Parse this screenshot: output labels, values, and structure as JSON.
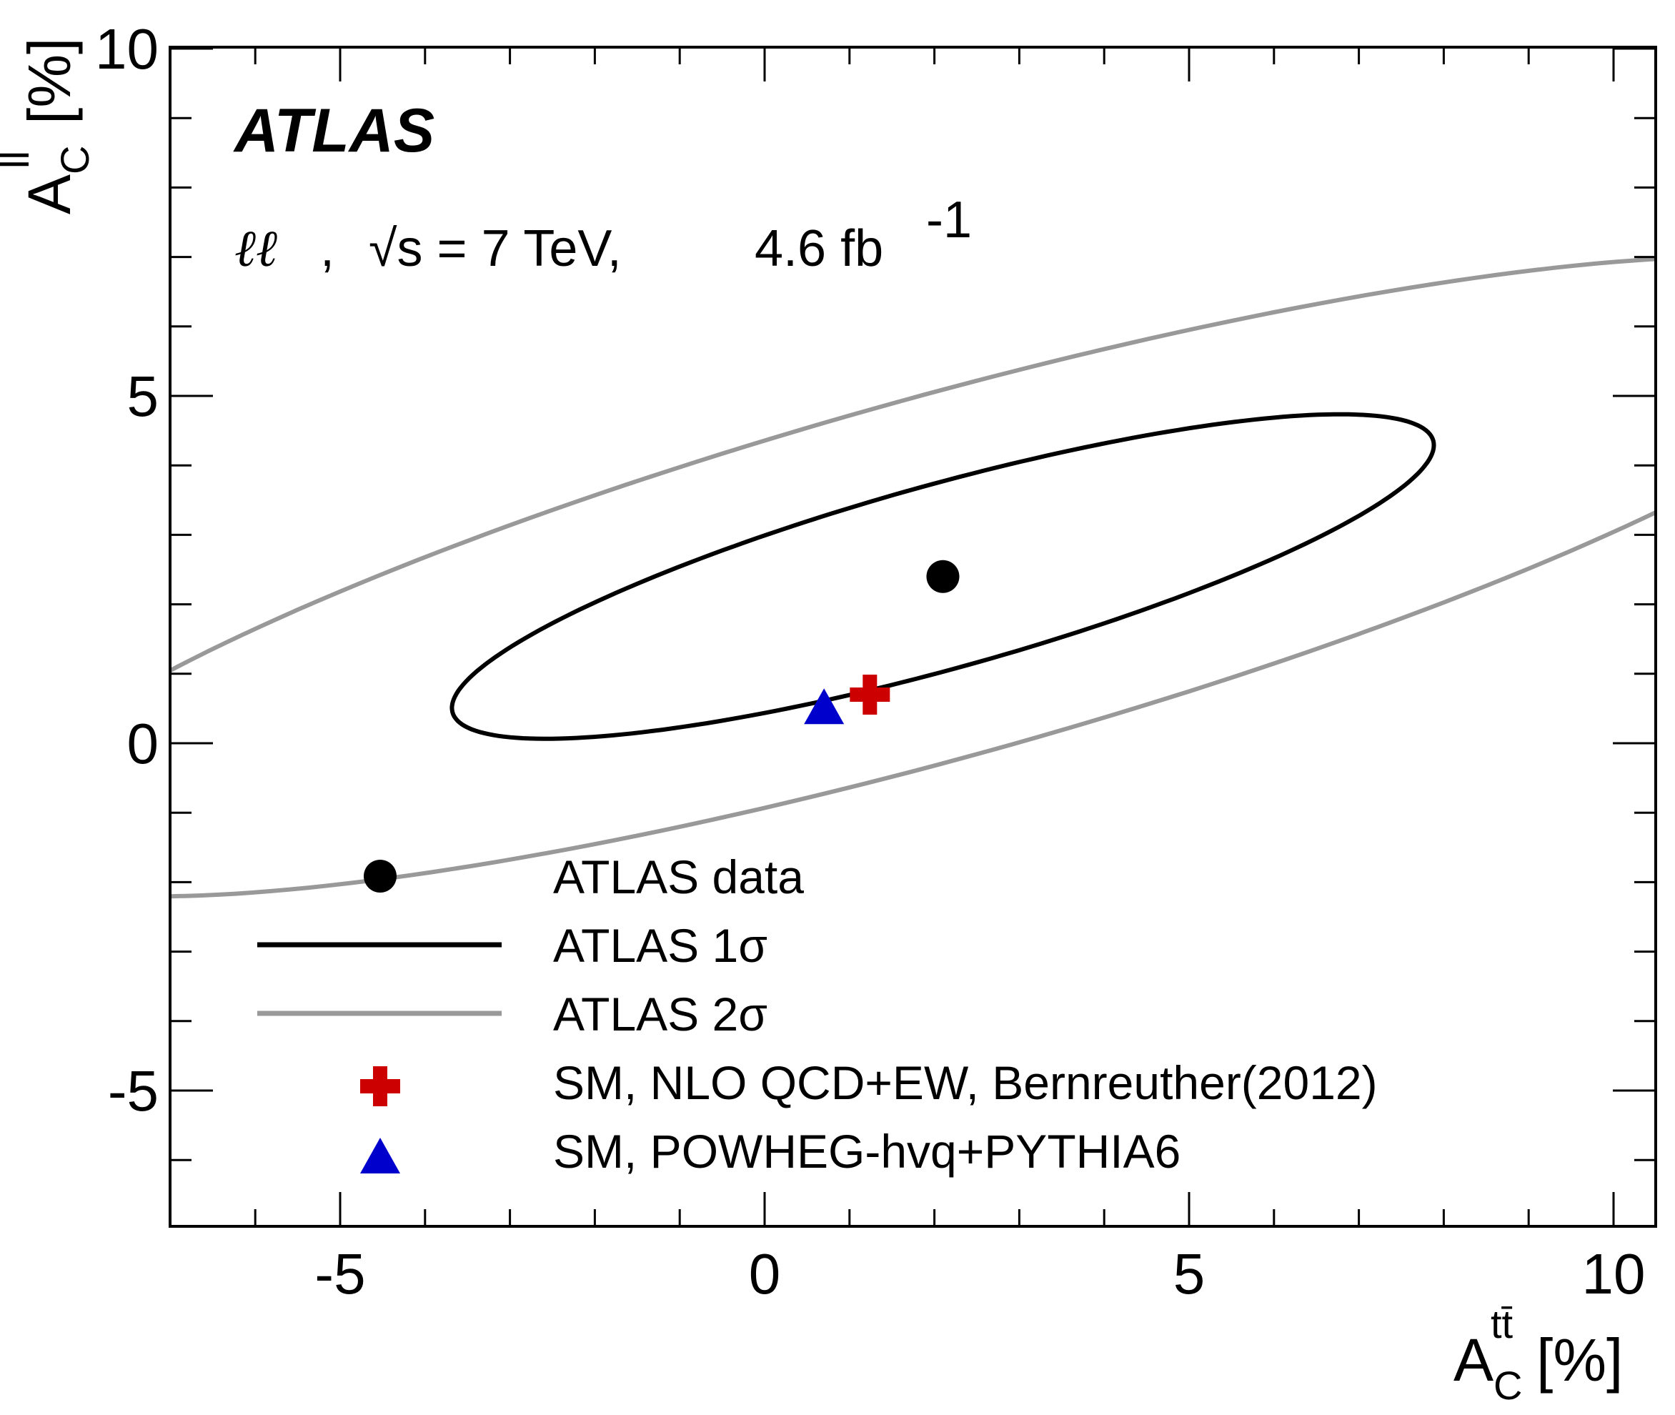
{
  "chart_data": {
    "type": "scatter",
    "title": "",
    "experiment_label": "ATLAS",
    "info": {
      "channel": "ℓℓ",
      "energy": "√s = 7 TeV,",
      "lumi_value": "4.6 fb",
      "lumi_exponent": "-1"
    },
    "xlabel": {
      "main": "A",
      "sub": "C",
      "sup": "tt̄",
      "unit": "[%]"
    },
    "ylabel": {
      "main": "A",
      "sub": "C",
      "sup": "ll",
      "unit": "[%]"
    },
    "xlim": [
      -7.0,
      10.5
    ],
    "ylim": [
      -6.9,
      10.1
    ],
    "x_major_ticks": [
      -5,
      0,
      5,
      10
    ],
    "x_tick_labels": [
      "-5",
      "0",
      "5",
      "10"
    ],
    "y_major_ticks": [
      -5,
      0,
      5,
      10
    ],
    "y_tick_labels": [
      "-5",
      "0",
      "5",
      "10"
    ],
    "minor_step": 1,
    "grid": false,
    "legend_position": "bottom-center",
    "series": [
      {
        "name": "ATLAS data",
        "kind": "point",
        "marker": "circle",
        "color": "#000000",
        "x": 2.1,
        "y": 2.4
      },
      {
        "name": "ATLAS 1σ",
        "kind": "ellipse",
        "color": "#000000",
        "center": [
          2.1,
          2.4
        ],
        "semi_major": 6.1,
        "semi_minor": 1.3,
        "angle_deg": 19
      },
      {
        "name": "ATLAS 2σ",
        "kind": "ellipse",
        "color": "#999999",
        "center": [
          2.1,
          2.4
        ],
        "semi_major": 12.05,
        "semi_minor": 2.55,
        "angle_deg": 19
      },
      {
        "name": "SM, NLO QCD+EW, Bernreuther(2012)",
        "kind": "point",
        "marker": "cross",
        "color": "#cc0000",
        "x": 1.24,
        "y": 0.7
      },
      {
        "name": "SM, POWHEG-hvq+PYTHIA6",
        "kind": "point",
        "marker": "triangle",
        "color": "#0000cc",
        "x": 0.7,
        "y": 0.44
      }
    ],
    "legend": [
      {
        "label": "ATLAS data",
        "marker": "circle",
        "color": "#000000"
      },
      {
        "label": "ATLAS 1σ",
        "marker": "line",
        "color": "#000000"
      },
      {
        "label": "ATLAS 2σ",
        "marker": "line",
        "color": "#999999"
      },
      {
        "label": "SM, NLO QCD+EW, Bernreuther(2012)",
        "marker": "cross",
        "color": "#cc0000"
      },
      {
        "label": "SM, POWHEG-hvq+PYTHIA6",
        "marker": "triangle",
        "color": "#0000cc"
      }
    ]
  }
}
